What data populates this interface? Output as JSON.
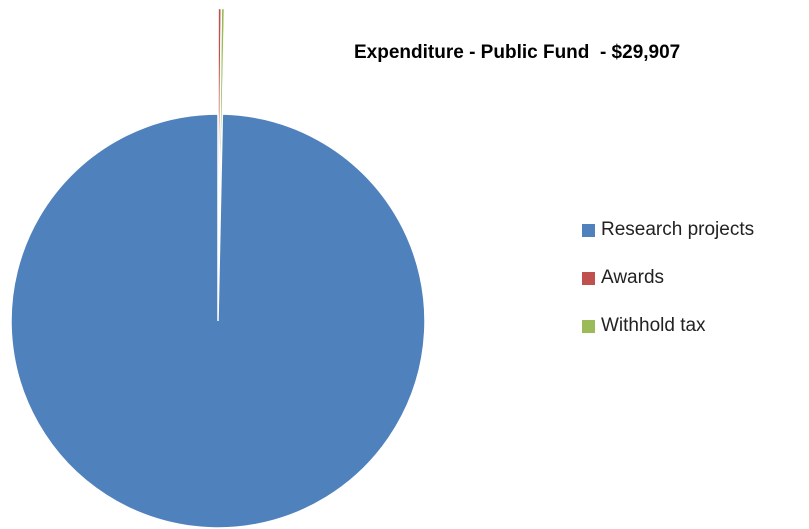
{
  "chart_data": {
    "type": "pie",
    "title": "Expenditure - Public Fund  - $29,907",
    "slices": [
      {
        "label": "Research projects",
        "value": 29807,
        "color": "#4F81BD"
      },
      {
        "label": "Awards",
        "value": 50,
        "color": "#C0504D"
      },
      {
        "label": "Withhold tax",
        "value": 50,
        "color": "#9BBB59"
      }
    ],
    "legend_position": "right"
  }
}
